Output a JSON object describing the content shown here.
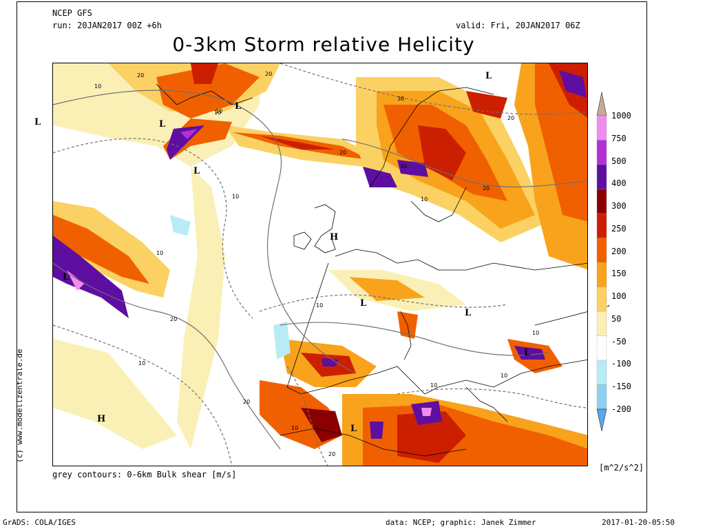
{
  "header": {
    "model": "NCEP GFS",
    "run": "run: 20JAN2017 00Z +6h",
    "valid": "valid: Fri, 20JAN2017 06Z",
    "title": "0-3km Storm relative Helicity"
  },
  "caption": "grey contours: 0-6km Bulk shear [m/s]",
  "copyright": "(c) www.modellzentrale.de",
  "footer": {
    "left": "GrADS: COLA/IGES",
    "center": "data: NCEP; graphic: Janek Zimmer",
    "right": "2017-01-20-05:50"
  },
  "legend": {
    "unit": "[m^2/s^2]",
    "levels": [
      {
        "value": "1000",
        "color": "#c9a89c"
      },
      {
        "value": "750",
        "color": "#f08cf0"
      },
      {
        "value": "500",
        "color": "#b42fd6"
      },
      {
        "value": "400",
        "color": "#5e0ea0"
      },
      {
        "value": "300",
        "color": "#8a0000"
      },
      {
        "value": "250",
        "color": "#cc1f00"
      },
      {
        "value": "200",
        "color": "#f06000"
      },
      {
        "value": "150",
        "color": "#f9a21b"
      },
      {
        "value": "100",
        "color": "#fbd163"
      },
      {
        "value": "50",
        "color": "#faf0b6"
      },
      {
        "value": "-50",
        "color": "#ffffff"
      },
      {
        "value": "-100",
        "color": "#b8ecf4"
      },
      {
        "value": "-150",
        "color": "#8ed0f2"
      },
      {
        "value": "-200",
        "color": "#5aa8ee"
      }
    ]
  },
  "pressure_labels": [
    "L",
    "L",
    "L",
    "L",
    "L",
    "L",
    "L",
    "L",
    "L",
    "L",
    "L",
    "L",
    "H",
    "H",
    "L"
  ],
  "contour_labels": [
    "20",
    "10",
    "20",
    "10",
    "30",
    "20",
    "20",
    "10",
    "30",
    "20",
    "10",
    "10",
    "10",
    "20",
    "10",
    "10",
    "10",
    "10",
    "20",
    "10",
    "20",
    "10"
  ]
}
